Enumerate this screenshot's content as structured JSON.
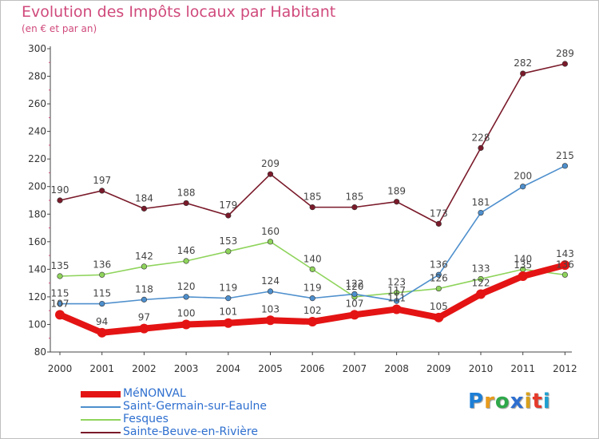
{
  "chart_data": {
    "type": "line",
    "title": "Evolution des Impôts locaux par Habitant",
    "subtitle": "(en € et par an)",
    "xlabel": "",
    "ylabel": "",
    "ylim": [
      80,
      300
    ],
    "yticks": [
      80,
      100,
      120,
      140,
      160,
      180,
      200,
      220,
      240,
      260,
      280,
      300
    ],
    "categories": [
      "2000",
      "2001",
      "2002",
      "2003",
      "2004",
      "2005",
      "2006",
      "2007",
      "2008",
      "2009",
      "2010",
      "2011",
      "2012"
    ],
    "grid": false,
    "legend_position": "bottom-left",
    "series": [
      {
        "name": "MéNONVAL",
        "color": "#e41414",
        "values": [
          107,
          94,
          97,
          100,
          101,
          103,
          102,
          107,
          111,
          105,
          122,
          135,
          143
        ]
      },
      {
        "name": "Saint-Germain-sur-Eaulne",
        "color": "#4e8fcd",
        "values": [
          115,
          115,
          118,
          120,
          119,
          124,
          119,
          122,
          117,
          136,
          181,
          200,
          215
        ]
      },
      {
        "name": "Fesques",
        "color": "#8fd45c",
        "values": [
          135,
          136,
          142,
          146,
          153,
          160,
          140,
          120,
          123,
          126,
          133,
          140,
          136
        ]
      },
      {
        "name": "Sainte-Beuve-en-Rivière",
        "color": "#7a1a2a",
        "values": [
          190,
          197,
          184,
          188,
          179,
          209,
          185,
          185,
          189,
          173,
          228,
          282,
          289
        ]
      }
    ]
  },
  "logo": {
    "letters": [
      "P",
      "r",
      "o",
      "x",
      "i",
      "t",
      "i"
    ],
    "colors": [
      "#1e7fd6",
      "#e89a1a",
      "#2fa84a",
      "#2e6fd0",
      "#d9a11b",
      "#e5392a",
      "#1f9fd0"
    ]
  }
}
